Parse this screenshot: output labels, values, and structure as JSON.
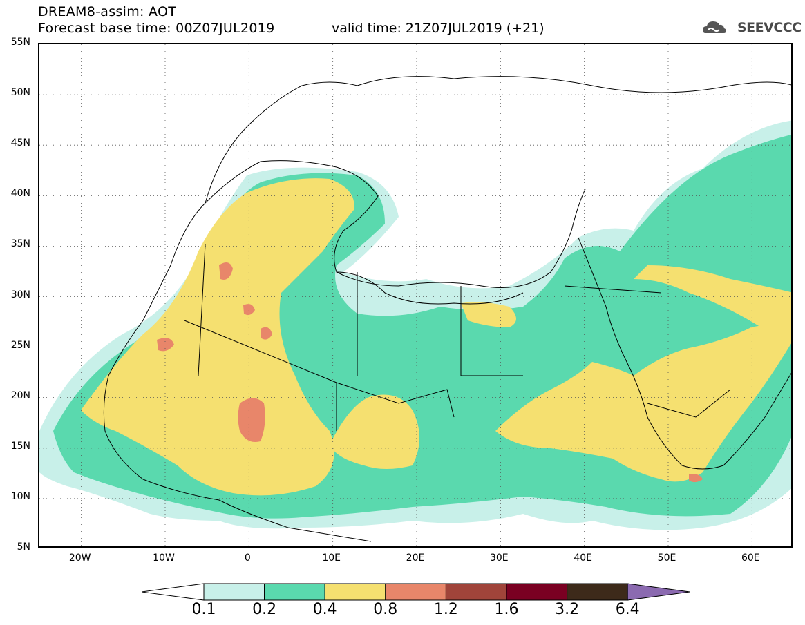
{
  "header": {
    "title_line1": "DREAM8-assim: AOT",
    "title_line2": "Forecast base time: 00Z07JUL2019",
    "valid_time": "valid time: 21Z07JUL2019 (+21)",
    "logo_text": "SEEVCCC"
  },
  "map": {
    "lon_range": [
      -25,
      65
    ],
    "lat_range": [
      5,
      55
    ],
    "lat_labels": [
      {
        "value": 55,
        "label": "55N"
      },
      {
        "value": 50,
        "label": "50N"
      },
      {
        "value": 45,
        "label": "45N"
      },
      {
        "value": 40,
        "label": "40N"
      },
      {
        "value": 35,
        "label": "35N"
      },
      {
        "value": 30,
        "label": "30N"
      },
      {
        "value": 25,
        "label": "25N"
      },
      {
        "value": 20,
        "label": "20N"
      },
      {
        "value": 15,
        "label": "15N"
      },
      {
        "value": 10,
        "label": "10N"
      },
      {
        "value": 5,
        "label": "5N"
      }
    ],
    "lon_labels": [
      {
        "value": -20,
        "label": "20W"
      },
      {
        "value": -10,
        "label": "10W"
      },
      {
        "value": 0,
        "label": "0"
      },
      {
        "value": 10,
        "label": "10E"
      },
      {
        "value": 20,
        "label": "20E"
      },
      {
        "value": 30,
        "label": "30E"
      },
      {
        "value": 40,
        "label": "40E"
      },
      {
        "value": 50,
        "label": "50E"
      },
      {
        "value": 60,
        "label": "60E"
      }
    ],
    "grid": "dotted"
  },
  "colorbar": {
    "labels": [
      "0.1",
      "0.2",
      "0.4",
      "0.8",
      "1.2",
      "1.6",
      "3.2",
      "6.4"
    ],
    "colors": [
      "#c8f0e9",
      "#5ad9ae",
      "#f5e070",
      "#e8866a",
      "#a0443a",
      "#7a0022",
      "#3d2a1a",
      "#8b6ab0"
    ]
  }
}
